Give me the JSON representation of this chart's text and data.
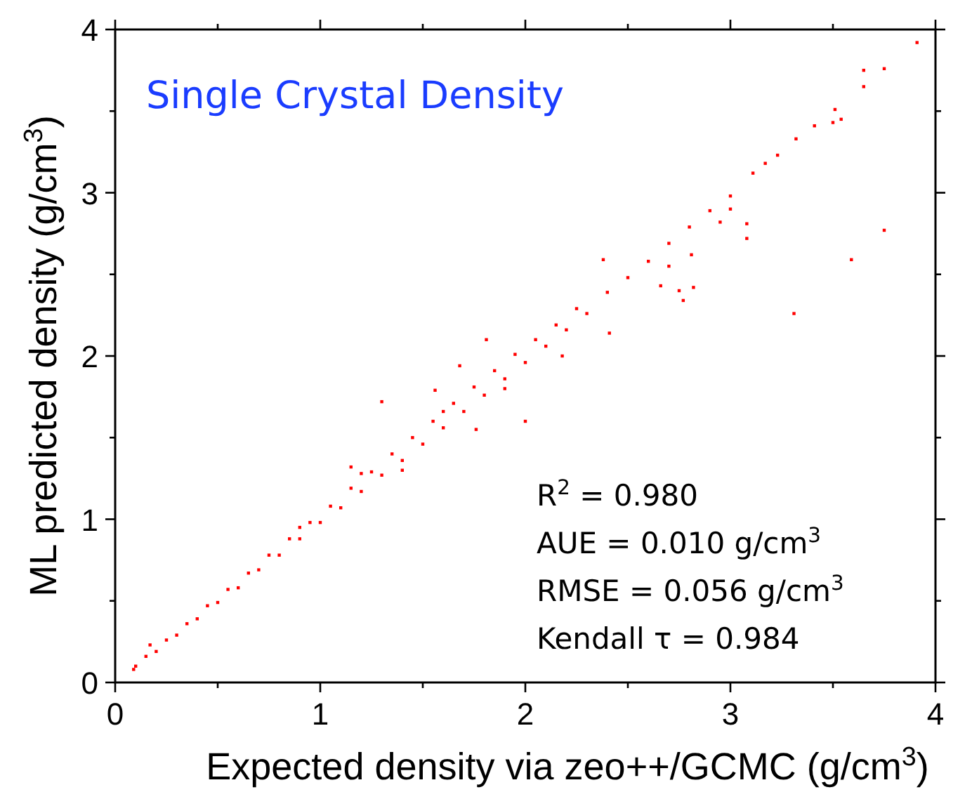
{
  "chart_data": {
    "type": "scatter",
    "title": "Single Crystal Density",
    "xlabel": "Expected density via zeo++/GCMC (g/cm$^{3}$)",
    "ylabel": "ML predicted density (g/cm$^{3}$)",
    "annotations": [
      "R$^{2}$ = 0.980",
      "AUE = 0.010 g/cm$^{3}$",
      "RMSE = 0.056 g/cm$^{3}$",
      "Kendall τ = 0.984"
    ],
    "xlim": [
      0,
      4
    ],
    "ylim": [
      0,
      4
    ],
    "xticks": [
      0,
      {
        "value": 0.5,
        "label": null
      },
      1,
      {
        "value": 1.5,
        "label": null
      },
      2,
      {
        "value": 2.5,
        "label": null
      },
      3,
      {
        "value": 3.5,
        "label": null
      },
      4
    ],
    "yticks": [
      0,
      {
        "value": 0.5,
        "label": null
      },
      1,
      {
        "value": 1.5,
        "label": null
      },
      2,
      {
        "value": 2.5,
        "label": null
      },
      3,
      {
        "value": 3.5,
        "label": null
      },
      4
    ],
    "marker": "square",
    "series": [
      {
        "color": "#ff0000",
        "x": [
          0.09,
          0.1,
          0.15,
          0.17,
          0.2,
          0.25,
          0.3,
          0.35,
          0.4,
          0.45,
          0.5,
          0.55,
          0.6,
          0.65,
          0.7,
          0.75,
          0.8,
          0.85,
          0.9,
          0.9,
          0.95,
          1.0,
          1.05,
          1.1,
          1.15,
          1.15,
          1.2,
          1.2,
          1.25,
          1.3,
          1.3,
          1.35,
          1.4,
          1.4,
          1.45,
          1.5,
          1.55,
          1.56,
          1.6,
          1.6,
          1.65,
          1.68,
          1.7,
          1.75,
          1.76,
          1.8,
          1.81,
          1.85,
          1.9,
          1.9,
          1.95,
          2.0,
          2.0,
          2.05,
          2.1,
          2.15,
          2.18,
          2.2,
          2.25,
          2.3,
          2.38,
          2.4,
          2.41,
          2.5,
          2.6,
          2.66,
          2.7,
          2.7,
          2.75,
          2.77,
          2.8,
          2.81,
          2.82,
          2.9,
          2.95,
          3.0,
          3.0,
          3.08,
          3.08,
          3.11,
          3.17,
          3.23,
          3.31,
          3.32,
          3.41,
          3.5,
          3.51,
          3.54,
          3.59,
          3.65,
          3.65,
          3.75,
          3.75,
          3.91
        ],
        "values": [
          0.08,
          0.1,
          0.16,
          0.23,
          0.19,
          0.26,
          0.29,
          0.36,
          0.39,
          0.47,
          0.49,
          0.57,
          0.58,
          0.67,
          0.69,
          0.78,
          0.78,
          0.88,
          0.88,
          0.95,
          0.98,
          0.98,
          1.08,
          1.07,
          1.19,
          1.32,
          1.17,
          1.28,
          1.29,
          1.27,
          1.72,
          1.4,
          1.36,
          1.3,
          1.5,
          1.46,
          1.6,
          1.79,
          1.56,
          1.66,
          1.71,
          1.94,
          1.66,
          1.81,
          1.55,
          1.76,
          2.1,
          1.91,
          1.86,
          1.8,
          2.01,
          1.96,
          1.6,
          2.1,
          2.06,
          2.19,
          2.0,
          2.16,
          2.29,
          2.26,
          2.59,
          2.39,
          2.14,
          2.48,
          2.58,
          2.43,
          2.69,
          2.55,
          2.4,
          2.34,
          2.79,
          2.62,
          2.42,
          2.89,
          2.82,
          2.98,
          2.9,
          2.81,
          2.72,
          3.12,
          3.18,
          3.23,
          2.26,
          3.33,
          3.41,
          3.43,
          3.51,
          3.45,
          2.59,
          3.65,
          3.75,
          3.76,
          2.77,
          3.92
        ]
      }
    ]
  }
}
